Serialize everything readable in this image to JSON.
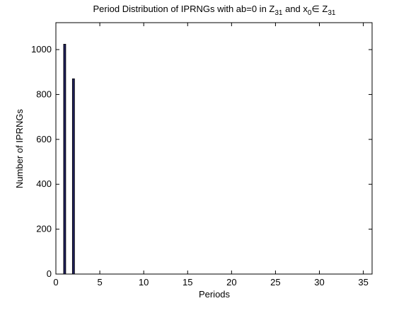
{
  "chart_data": {
    "type": "bar",
    "title": [
      "Period Distribution of IPRNGs with ab=0 in Z",
      "31",
      " and x",
      "0",
      "∈ Z",
      "31"
    ],
    "xlabel": "Periods",
    "ylabel": "Number of IPRNGs",
    "x": [
      1,
      2
    ],
    "values": [
      1024,
      870
    ],
    "color": "#1f1f5a",
    "xlim": [
      0,
      36
    ],
    "xticks": [
      0,
      5,
      10,
      15,
      20,
      25,
      30,
      35
    ],
    "ylim": [
      0,
      1120
    ],
    "yticks": [
      0,
      200,
      400,
      600,
      800,
      1000
    ],
    "grid": false
  }
}
